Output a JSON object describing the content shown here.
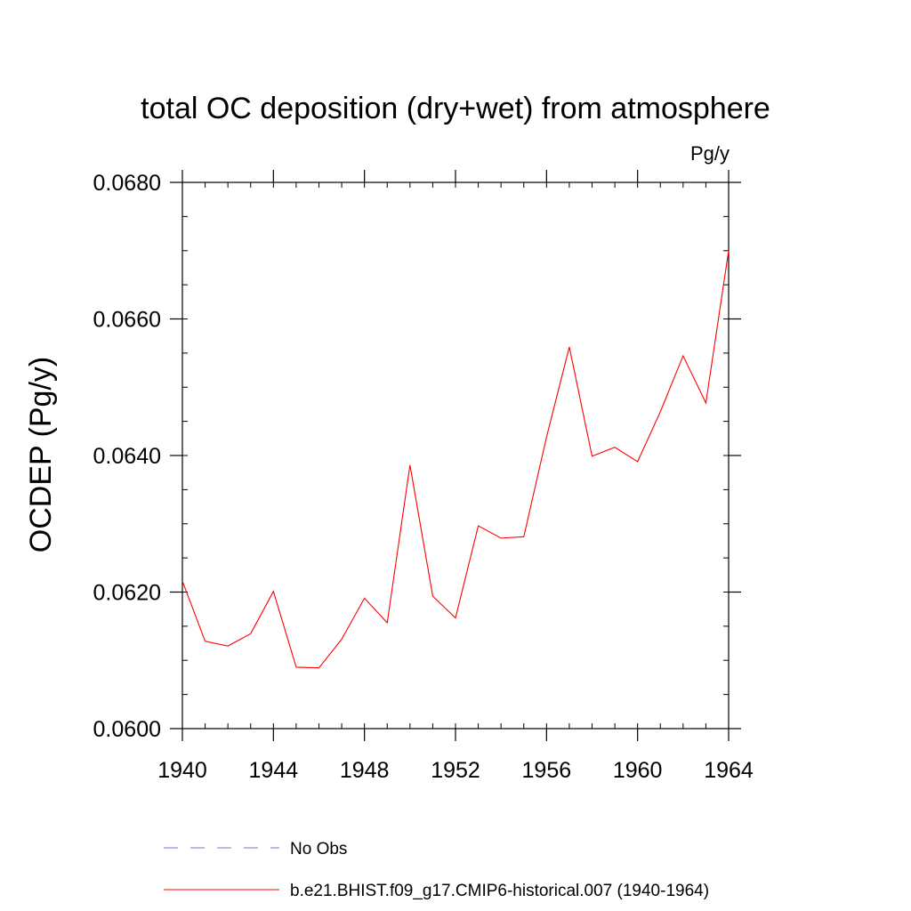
{
  "chart_data": {
    "type": "line",
    "title": "total OC deposition (dry+wet) from atmosphere",
    "units_label": "Pg/y",
    "ylabel": "OCDEP  (Pg/y)",
    "xlabel": "",
    "xlim": [
      1940,
      1964
    ],
    "ylim": [
      0.06,
      0.068
    ],
    "x_ticks": [
      1940,
      1944,
      1948,
      1952,
      1956,
      1960,
      1964
    ],
    "x_tick_labels": [
      "1940",
      "1944",
      "1948",
      "1952",
      "1956",
      "1960",
      "1964"
    ],
    "x_minor_step": 1,
    "y_ticks": [
      0.06,
      0.062,
      0.064,
      0.066,
      0.068
    ],
    "y_tick_labels": [
      "0.0600",
      "0.0620",
      "0.0640",
      "0.0660",
      "0.0680"
    ],
    "y_minor_step": 0.0005,
    "grid": false,
    "series": [
      {
        "name": "b.e21.BHIST.f09_g17.CMIP6-historical.007 (1940-1964)",
        "color": "#ff0000",
        "x": [
          1940,
          1941,
          1942,
          1943,
          1944,
          1945,
          1946,
          1947,
          1948,
          1949,
          1950,
          1951,
          1952,
          1953,
          1954,
          1955,
          1956,
          1957,
          1958,
          1959,
          1960,
          1961,
          1962,
          1963,
          1964
        ],
        "y": [
          0.06216,
          0.06128,
          0.06121,
          0.06139,
          0.06201,
          0.0609,
          0.06089,
          0.06131,
          0.06191,
          0.06155,
          0.06386,
          0.06194,
          0.06162,
          0.06297,
          0.06279,
          0.06281,
          0.06427,
          0.06559,
          0.06399,
          0.06412,
          0.06391,
          0.06464,
          0.06546,
          0.06477,
          0.067
        ]
      }
    ],
    "legend": [
      {
        "label": "No Obs",
        "color": "#7777cc",
        "style": "dashed"
      },
      {
        "label": "b.e21.BHIST.f09_g17.CMIP6-historical.007 (1940-1964)",
        "color": "#ff0000",
        "style": "solid"
      }
    ],
    "legend_position": "bottom"
  }
}
